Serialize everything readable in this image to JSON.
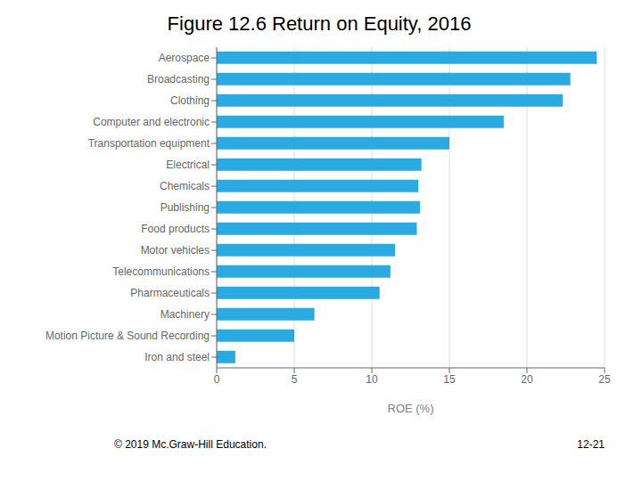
{
  "chart_data": {
    "type": "bar",
    "orientation": "horizontal",
    "title": "Figure 12.6 Return on Equity, 2016",
    "categories": [
      "Aerospace",
      "Broadcasting",
      "Clothing",
      "Computer and electronic",
      "Transportation equipment",
      "Electrical",
      "Chemicals",
      "Publishing",
      "Food products",
      "Motor vehicles",
      "Telecommunications",
      "Pharmaceuticals",
      "Machinery",
      "Motion Picture & Sound Recording",
      "Iron and steel"
    ],
    "values": [
      24.5,
      22.8,
      22.3,
      18.5,
      15.0,
      13.2,
      13.0,
      13.1,
      12.9,
      11.5,
      11.2,
      10.5,
      6.3,
      5.0,
      1.2
    ],
    "color": "#29ABE2",
    "xlabel": "ROE (%)",
    "xlim": [
      0,
      25
    ],
    "xticks": [
      0,
      5,
      10,
      15,
      20,
      25
    ],
    "grid": true,
    "annotations": [
      "© 2019 Mc.Graw-Hill Education.",
      "12-21"
    ]
  }
}
